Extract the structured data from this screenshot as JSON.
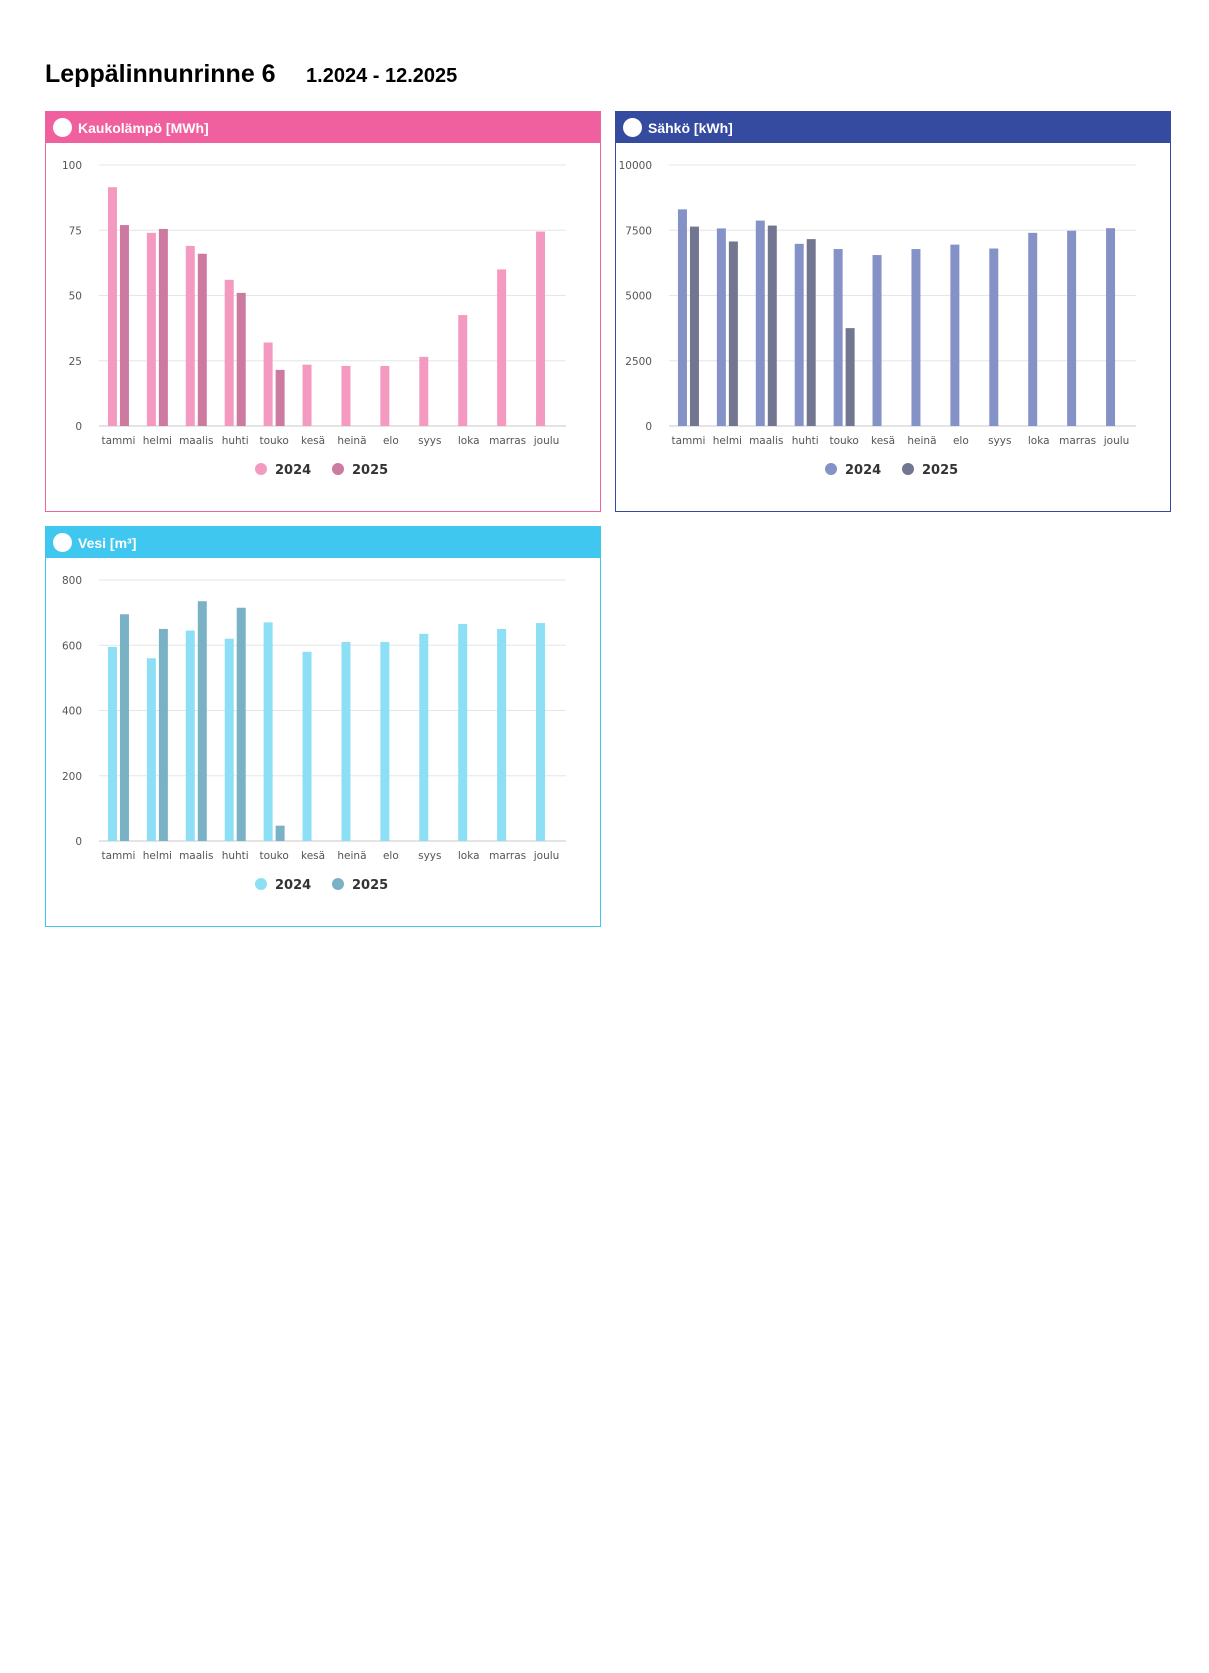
{
  "page": {
    "title": "Leppälinnunrinne 6",
    "period": "1.2024 - 12.2025"
  },
  "chart_data": [
    {
      "id": "heat",
      "type": "bar",
      "title": "Kaukolämpö [MWh]",
      "header_color": "#f0609e",
      "border_color": "#e8669f",
      "categories": [
        "tammi",
        "helmi",
        "maalis",
        "huhti",
        "touko",
        "kesä",
        "heinä",
        "elo",
        "syys",
        "loka",
        "marras",
        "joulu"
      ],
      "yticks": [
        "0",
        "25",
        "50",
        "75",
        "100"
      ],
      "ylim": [
        0,
        100
      ],
      "series": [
        {
          "name": "2024",
          "color": "#f49ac1",
          "values": [
            91.5,
            74,
            69,
            56,
            32,
            23.5,
            23,
            23,
            26.5,
            42.5,
            60,
            74.5
          ]
        },
        {
          "name": "2025",
          "color": "#cc7aa0",
          "values": [
            77,
            75.5,
            66,
            51,
            21.5,
            null,
            null,
            null,
            null,
            null,
            null,
            null
          ]
        }
      ]
    },
    {
      "id": "electricity",
      "type": "bar",
      "title": "Sähkö [kWh]",
      "header_color": "#354ba0",
      "border_color": "#354ba0",
      "categories": [
        "tammi",
        "helmi",
        "maalis",
        "huhti",
        "touko",
        "kesä",
        "heinä",
        "elo",
        "syys",
        "loka",
        "marras",
        "joulu"
      ],
      "yticks": [
        "0",
        "2500",
        "5000",
        "7500",
        "10000"
      ],
      "ylim": [
        0,
        10000
      ],
      "series": [
        {
          "name": "2024",
          "color": "#8592c7",
          "values": [
            8300,
            7570,
            7870,
            6980,
            6780,
            6550,
            6780,
            6950,
            6800,
            7400,
            7480,
            7580
          ]
        },
        {
          "name": "2025",
          "color": "#737690",
          "values": [
            7640,
            7070,
            7680,
            7160,
            3750,
            null,
            null,
            null,
            null,
            null,
            null,
            null
          ]
        }
      ]
    },
    {
      "id": "water",
      "type": "bar",
      "title": "Vesi [m³]",
      "header_color": "#40c7ef",
      "border_color": "#40c7ef",
      "categories": [
        "tammi",
        "helmi",
        "maalis",
        "huhti",
        "touko",
        "kesä",
        "heinä",
        "elo",
        "syys",
        "loka",
        "marras",
        "joulu"
      ],
      "yticks": [
        "0",
        "200",
        "400",
        "600",
        "800"
      ],
      "ylim": [
        0,
        800
      ],
      "series": [
        {
          "name": "2024",
          "color": "#8cdff5",
          "values": [
            595,
            560,
            645,
            620,
            670,
            580,
            610,
            610,
            635,
            665,
            650,
            668
          ]
        },
        {
          "name": "2025",
          "color": "#79b2c4",
          "values": [
            695,
            650,
            735,
            715,
            47,
            null,
            null,
            null,
            null,
            null,
            null,
            null
          ]
        }
      ]
    }
  ]
}
